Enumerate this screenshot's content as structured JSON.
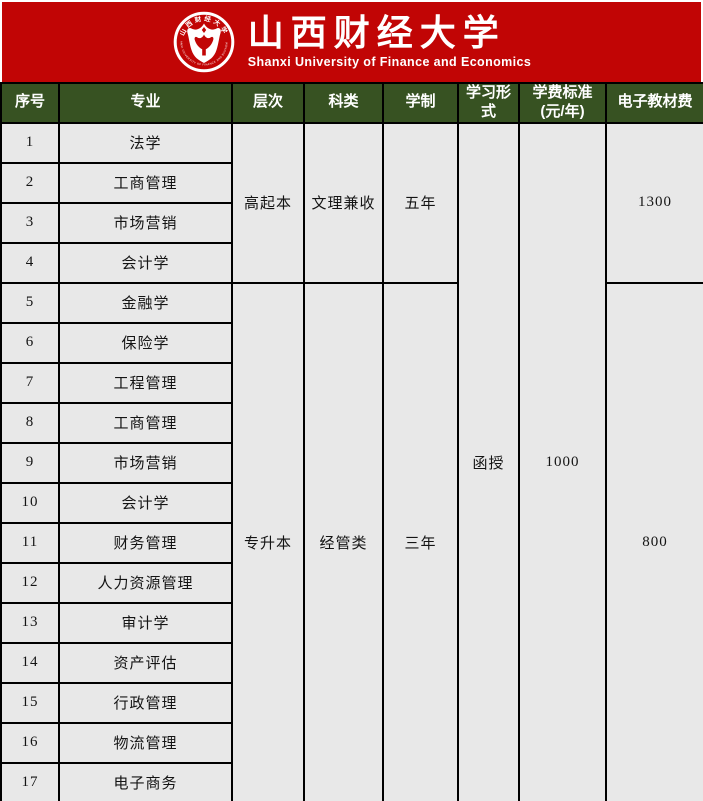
{
  "banner": {
    "bg_color": "#c10505",
    "title_cn": "山西财经大学",
    "title_en": "Shanxi University of Finance and Economics",
    "logo": {
      "ring_text_top": "山西财经大学",
      "ring_text_bottom": "SHANXI UNIVERSITY OF FINANCE AND ECONOMICS"
    }
  },
  "table": {
    "header_bg": "#375222",
    "cell_bg": "#e8e8e8",
    "border_color": "#000000",
    "columns": [
      {
        "key": "no",
        "label": "序号"
      },
      {
        "key": "major",
        "label": "专业"
      },
      {
        "key": "level",
        "label": "层次"
      },
      {
        "key": "category",
        "label": "科类"
      },
      {
        "key": "duration",
        "label": "学制"
      },
      {
        "key": "study-form",
        "label": "学习形式"
      },
      {
        "key": "tuition",
        "label": "学费标准\n(元/年)"
      },
      {
        "key": "ebook-fee",
        "label": "电子教材费"
      }
    ],
    "study_form": "函授",
    "tuition": "1000",
    "groups": [
      {
        "level": "高起本",
        "category": "文理兼收",
        "duration": "五年",
        "ebook_fee": "1300",
        "rows": [
          {
            "no": "1",
            "major": "法学"
          },
          {
            "no": "2",
            "major": "工商管理"
          },
          {
            "no": "3",
            "major": "市场营销"
          },
          {
            "no": "4",
            "major": "会计学"
          }
        ]
      },
      {
        "level": "专升本",
        "category": "经管类",
        "duration": "三年",
        "ebook_fee": "800",
        "rows": [
          {
            "no": "5",
            "major": "金融学"
          },
          {
            "no": "6",
            "major": "保险学"
          },
          {
            "no": "7",
            "major": "工程管理"
          },
          {
            "no": "8",
            "major": "工商管理"
          },
          {
            "no": "9",
            "major": "市场营销"
          },
          {
            "no": "10",
            "major": "会计学"
          },
          {
            "no": "11",
            "major": "财务管理"
          },
          {
            "no": "12",
            "major": "人力资源管理"
          },
          {
            "no": "13",
            "major": "审计学"
          },
          {
            "no": "14",
            "major": "资产评估"
          },
          {
            "no": "15",
            "major": "行政管理"
          },
          {
            "no": "16",
            "major": "物流管理"
          },
          {
            "no": "17",
            "major": "电子商务"
          }
        ]
      }
    ]
  }
}
